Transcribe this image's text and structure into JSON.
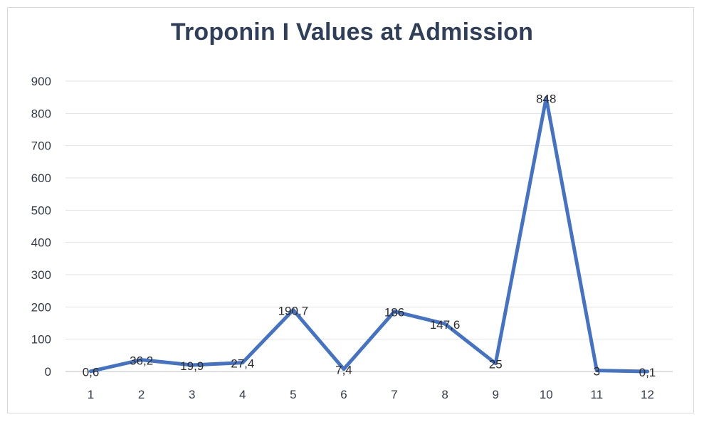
{
  "chart_data": {
    "type": "line",
    "title": "Troponin I Values at Admission",
    "xlabel": "",
    "ylabel": "",
    "categories": [
      "1",
      "2",
      "3",
      "4",
      "5",
      "6",
      "7",
      "8",
      "9",
      "10",
      "11",
      "12"
    ],
    "series": [
      {
        "values": [
          0.6,
          36.2,
          19.9,
          27.4,
          190.7,
          7.4,
          186,
          147.6,
          25,
          848,
          3,
          0.1
        ],
        "labels": [
          "0,6",
          "36,2",
          "19,9",
          "27,4",
          "190,7",
          "7,4",
          "186",
          "147,6",
          "25",
          "848",
          "3",
          "0,1"
        ],
        "color": "#4472c4"
      }
    ],
    "ylim": [
      0,
      900
    ],
    "yticks": [
      "0",
      "100",
      "200",
      "300",
      "400",
      "500",
      "600",
      "700",
      "800",
      "900"
    ],
    "grid": true,
    "legend": "none"
  }
}
